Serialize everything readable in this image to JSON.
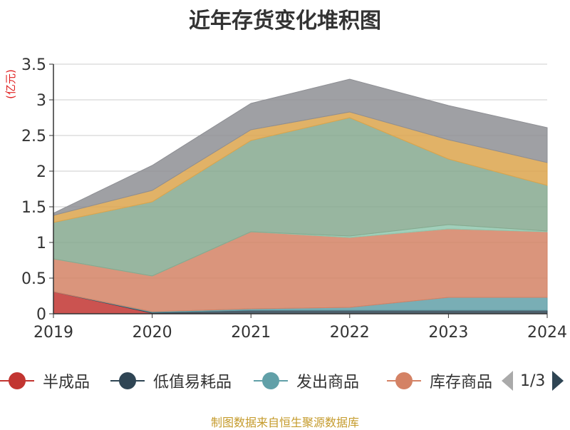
{
  "chart_data": {
    "type": "area",
    "stacked": true,
    "title": "近年存货变化堆积图",
    "ylabel": "(亿元)",
    "xlabel": "",
    "x": [
      "2019",
      "2020",
      "2021",
      "2022",
      "2023",
      "2024"
    ],
    "ylim": [
      0,
      3.5
    ],
    "yticks": [
      "0",
      "0.5",
      "1",
      "1.5",
      "2",
      "2.5",
      "3",
      "3.5"
    ],
    "grid": true,
    "legend_position": "bottom",
    "series": [
      {
        "name": "半成品",
        "color": "#c23531",
        "values": [
          0.31,
          0.01,
          0.0,
          0.0,
          0.0,
          0.0
        ]
      },
      {
        "name": "低值易耗品",
        "color": "#2f4554",
        "values": [
          0.0,
          0.01,
          0.05,
          0.05,
          0.05,
          0.05
        ]
      },
      {
        "name": "发出商品",
        "color": "#61a0a8",
        "values": [
          0.0,
          0.01,
          0.02,
          0.04,
          0.18,
          0.18
        ]
      },
      {
        "name": "库存商品",
        "color": "#d48265",
        "values": [
          0.46,
          0.5,
          1.08,
          0.98,
          0.96,
          0.92
        ]
      },
      {
        "name": "",
        "color": "#91c7ae",
        "values": [
          0.0,
          0.0,
          0.0,
          0.02,
          0.06,
          0.01
        ]
      },
      {
        "name": "",
        "color": "#86a98f",
        "values": [
          0.51,
          1.04,
          1.28,
          1.66,
          0.92,
          0.64
        ]
      },
      {
        "name": "",
        "color": "#dca54c",
        "values": [
          0.1,
          0.16,
          0.15,
          0.08,
          0.27,
          0.32
        ]
      },
      {
        "name": "",
        "color": "#8e8f94",
        "values": [
          0.03,
          0.35,
          0.37,
          0.46,
          0.48,
          0.49
        ]
      }
    ]
  },
  "legend": {
    "pager_text": "1/3"
  },
  "source_note": "制图数据来自恒生聚源数据库"
}
